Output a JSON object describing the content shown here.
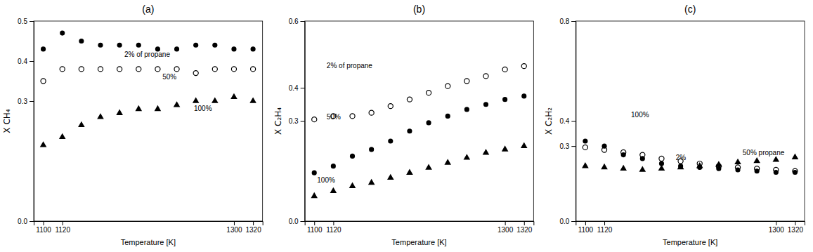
{
  "chart_data": [
    {
      "type": "scatter",
      "title": "(a)",
      "x_label": "Temperature [K]",
      "y_label": "X CH₄",
      "x": [
        1100,
        1120,
        1140,
        1160,
        1180,
        1200,
        1220,
        1240,
        1260,
        1280,
        1300,
        1320
      ],
      "series": [
        {
          "color": "black",
          "marker": "circle",
          "values": [
            0.43,
            0.47,
            0.45,
            0.44,
            0.44,
            0.44,
            0.43,
            0.43,
            0.44,
            0.44,
            0.43,
            0.43
          ]
        },
        {
          "color": "black",
          "marker": "open-circle",
          "values": [
            0.35,
            0.38,
            0.38,
            0.38,
            0.38,
            0.38,
            0.38,
            0.38,
            0.37,
            0.38,
            0.38,
            0.38
          ]
        },
        {
          "color": "black",
          "marker": "triangle",
          "values": [
            0.19,
            0.21,
            0.24,
            0.26,
            0.27,
            0.28,
            0.28,
            0.29,
            0.3,
            0.3,
            0.31,
            0.3
          ]
        }
      ],
      "xlim": [
        1090,
        1330
      ],
      "xticks": [
        1100,
        1120,
        1300,
        1320
      ],
      "ylim": [
        0.0,
        0.5
      ],
      "yticks": [
        {
          "value": 0.0,
          "label": "0.0"
        },
        0.3,
        0.4,
        0.5
      ],
      "annotations": [
        {
          "text": "2% of propane",
          "x": 1185,
          "y": 0.41
        },
        {
          "text": "50%",
          "x": 1225,
          "y": 0.355
        },
        {
          "text": "100%",
          "x": 1258,
          "y": 0.275
        }
      ],
      "grid": false
    },
    {
      "type": "scatter",
      "title": "(b)",
      "x_label": "Temperature [K]",
      "y_label": "X C₂H₄",
      "x": [
        1100,
        1120,
        1140,
        1160,
        1180,
        1200,
        1220,
        1240,
        1260,
        1280,
        1300,
        1320
      ],
      "series": [
        {
          "color": "black",
          "marker": "circle",
          "values": [
            0.145,
            0.165,
            0.195,
            0.215,
            0.24,
            0.27,
            0.295,
            0.315,
            0.335,
            0.35,
            0.365,
            0.375
          ]
        },
        {
          "color": "black",
          "marker": "open-circle",
          "values": [
            0.305,
            0.315,
            0.315,
            0.325,
            0.345,
            0.365,
            0.385,
            0.405,
            0.42,
            0.435,
            0.455,
            0.465
          ]
        },
        {
          "color": "black",
          "marker": "triangle",
          "values": [
            0.075,
            0.09,
            0.105,
            0.115,
            0.13,
            0.145,
            0.16,
            0.175,
            0.19,
            0.205,
            0.215,
            0.225
          ]
        }
      ],
      "xlim": [
        1090,
        1330
      ],
      "xticks": [
        1100,
        1120,
        1300,
        1320
      ],
      "ylim": [
        0.0,
        0.6
      ],
      "yticks": [
        {
          "value": 0.0,
          "label": "0.0"
        },
        0.3,
        0.4,
        0.6
      ],
      "annotations": [
        {
          "text": "2% of propane",
          "x": 1113,
          "y": 0.46
        },
        {
          "text": "50%",
          "x": 1113,
          "y": 0.305
        },
        {
          "text": "100%",
          "x": 1103,
          "y": 0.115
        }
      ],
      "grid": false
    },
    {
      "type": "scatter",
      "title": "(c)",
      "x_label": "Temperature [K]",
      "y_label": "X C₂H₂",
      "x": [
        1100,
        1120,
        1140,
        1160,
        1180,
        1200,
        1220,
        1240,
        1260,
        1280,
        1300,
        1320
      ],
      "series": [
        {
          "color": "black",
          "marker": "circle",
          "values": [
            0.32,
            0.3,
            0.265,
            0.25,
            0.23,
            0.22,
            0.215,
            0.21,
            0.205,
            0.2,
            0.195,
            0.195
          ]
        },
        {
          "color": "black",
          "marker": "open-circle",
          "values": [
            0.295,
            0.285,
            0.275,
            0.265,
            0.25,
            0.24,
            0.23,
            0.22,
            0.215,
            0.21,
            0.205,
            0.2
          ]
        },
        {
          "color": "black",
          "marker": "triangle",
          "values": [
            0.22,
            0.215,
            0.21,
            0.205,
            0.21,
            0.215,
            0.22,
            0.225,
            0.235,
            0.24,
            0.245,
            0.255
          ]
        }
      ],
      "xlim": [
        1090,
        1330
      ],
      "xticks": [
        1100,
        1120,
        1300,
        1320
      ],
      "ylim": [
        0.0,
        0.8
      ],
      "yticks": [
        {
          "value": 0.0,
          "label": "0.0"
        },
        0.3,
        0.4,
        0.8
      ],
      "annotations": [
        {
          "text": "2%",
          "x": 1195,
          "y": 0.245
        },
        {
          "text": "50% propane",
          "x": 1265,
          "y": 0.265
        },
        {
          "text": "100%",
          "x": 1148,
          "y": 0.415
        }
      ],
      "grid": false
    }
  ]
}
